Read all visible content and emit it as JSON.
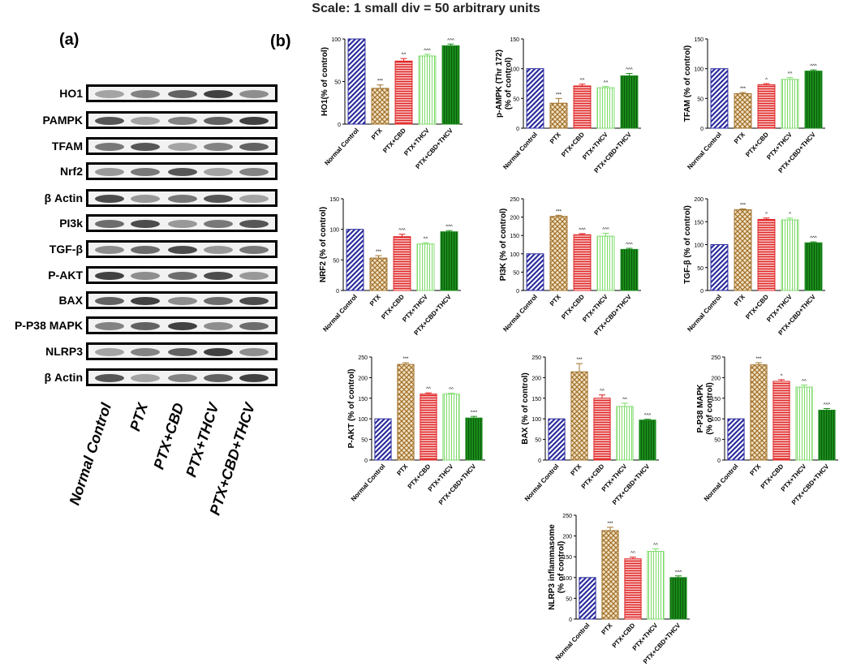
{
  "scale_note": "Scale: 1 small div = 50 arbitrary units",
  "panel_a_label": "(a)",
  "panel_b_label": "(b)",
  "blot": {
    "proteins": [
      "HO1",
      "PAMPK",
      "TFAM",
      "Nrf2",
      "β Actin",
      "PI3k",
      "TGF-β",
      "P-AKT",
      "BAX",
      "P-P38 MAPK",
      "NLRP3",
      "β Actin"
    ],
    "lanes": [
      "Normal Control",
      "PTX",
      "PTX+CBD",
      "PTX+THCV",
      "PTX+CBD+THCV"
    ]
  },
  "colors": {
    "Normal Control": "#2b2b9e",
    "PTX": "#a0702a",
    "PTX+CBD": "#e02020",
    "PTX+THCV": "#7ddb6a",
    "PTX+CBD+THCV": "#1a8a1a"
  },
  "chart_data": [
    {
      "type": "bar",
      "ylabel": "HO1(% of control)",
      "ylim": [
        0,
        100
      ],
      "yticks": [
        0,
        50,
        100
      ],
      "categories": [
        "Normal Control",
        "PTX",
        "PTX+CBD",
        "PTX+THCV",
        "PTX+CBD+THCV"
      ],
      "values": [
        100,
        42,
        74,
        80,
        92
      ],
      "errors": [
        0,
        4,
        3,
        2,
        2
      ],
      "labels": [
        "",
        "***",
        "^^",
        "^^^",
        "^^^"
      ]
    },
    {
      "type": "bar",
      "ylabel": "p-AMPK (Thr 172) (% of control)",
      "ylim": [
        0,
        150
      ],
      "yticks": [
        0,
        50,
        100,
        150
      ],
      "categories": [
        "Normal Control",
        "PTX",
        "PTX+CBD",
        "PTX+THCV",
        "PTX+CBD+THCV"
      ],
      "values": [
        100,
        42,
        71,
        68,
        88
      ],
      "errors": [
        0,
        8,
        3,
        2,
        4
      ],
      "labels": [
        "",
        "***",
        "^^",
        "^^",
        "^^^"
      ]
    },
    {
      "type": "bar",
      "ylabel": "TFAM (% of control)",
      "ylim": [
        0,
        150
      ],
      "yticks": [
        0,
        50,
        100,
        150
      ],
      "categories": [
        "Normal Control",
        "PTX",
        "PTX+CBD",
        "PTX+THCV",
        "PTX+CBD+THCV"
      ],
      "values": [
        100,
        58,
        73,
        82,
        96
      ],
      "errors": [
        0,
        2,
        2,
        3,
        2
      ],
      "labels": [
        "",
        "***",
        "^",
        "^^",
        "^^^"
      ]
    },
    {
      "type": "bar",
      "ylabel": "NRF2 (% of control)",
      "ylim": [
        0,
        150
      ],
      "yticks": [
        0,
        50,
        100,
        150
      ],
      "categories": [
        "Normal Control",
        "PTX",
        "PTX+CBD",
        "PTX+THCV",
        "PTX+CBD+THCV"
      ],
      "values": [
        100,
        53,
        88,
        76,
        96
      ],
      "errors": [
        0,
        4,
        4,
        2,
        2
      ],
      "labels": [
        "",
        "***",
        "^^^",
        "^^",
        "^^^"
      ]
    },
    {
      "type": "bar",
      "ylabel": "PI3K (% of control)",
      "ylim": [
        0,
        250
      ],
      "yticks": [
        0,
        50,
        100,
        150,
        200,
        250
      ],
      "categories": [
        "Normal Control",
        "PTX",
        "PTX+CBD",
        "PTX+THCV",
        "PTX+CBD+THCV"
      ],
      "values": [
        100,
        202,
        152,
        148,
        112
      ],
      "errors": [
        0,
        3,
        3,
        8,
        3
      ],
      "labels": [
        "",
        "***",
        "^^^",
        "^^^",
        "^^^"
      ]
    },
    {
      "type": "bar",
      "ylabel": "TGF-β (% of control)",
      "ylim": [
        0,
        200
      ],
      "yticks": [
        0,
        50,
        100,
        150,
        200
      ],
      "categories": [
        "Normal Control",
        "PTX",
        "PTX+CBD",
        "PTX+THCV",
        "PTX+CBD+THCV"
      ],
      "values": [
        100,
        176,
        155,
        154,
        104
      ],
      "errors": [
        0,
        2,
        3,
        4,
        2
      ],
      "labels": [
        "",
        "***",
        "^",
        "^",
        "^^^"
      ]
    },
    {
      "type": "bar",
      "ylabel": "P-AKT (% of control)",
      "ylim": [
        0,
        250
      ],
      "yticks": [
        0,
        50,
        100,
        150,
        200,
        250
      ],
      "categories": [
        "Normal Control",
        "PTX",
        "PTX+CBD",
        "PTX+THCV",
        "PTX+CBD+THCV"
      ],
      "values": [
        100,
        232,
        160,
        160,
        102
      ],
      "errors": [
        0,
        4,
        3,
        2,
        4
      ],
      "labels": [
        "",
        "***",
        "^^",
        "^^",
        "^^^"
      ]
    },
    {
      "type": "bar",
      "ylabel": "BAX (% of control)",
      "ylim": [
        0,
        250
      ],
      "yticks": [
        0,
        50,
        100,
        150,
        200,
        250
      ],
      "categories": [
        "Normal Control",
        "PTX",
        "PTX+CBD",
        "PTX+THCV",
        "PTX+CBD+THCV"
      ],
      "values": [
        100,
        214,
        150,
        130,
        97
      ],
      "errors": [
        0,
        20,
        8,
        8,
        2
      ],
      "labels": [
        "",
        "***",
        "^^",
        "^^",
        "^^^"
      ]
    },
    {
      "type": "bar",
      "ylabel": "P-P38 MAPK (% of control)",
      "ylim": [
        0,
        250
      ],
      "yticks": [
        0,
        50,
        100,
        150,
        200,
        250
      ],
      "categories": [
        "Normal Control",
        "PTX",
        "PTX+CBD",
        "PTX+THCV",
        "PTX+CBD+THCV"
      ],
      "values": [
        100,
        231,
        191,
        177,
        121
      ],
      "errors": [
        0,
        5,
        4,
        5,
        4
      ],
      "labels": [
        "",
        "***",
        "^",
        "^^",
        "^^^"
      ]
    },
    {
      "type": "bar",
      "ylabel": "NLRP3 inflammasome (% of control)",
      "ylim": [
        0,
        250
      ],
      "yticks": [
        0,
        50,
        100,
        150,
        200,
        250
      ],
      "categories": [
        "Normal Control",
        "PTX",
        "PTX+CBD",
        "PTX+THCV",
        "PTX+CBD+THCV"
      ],
      "values": [
        100,
        213,
        145,
        163,
        100
      ],
      "errors": [
        0,
        8,
        4,
        6,
        4
      ],
      "labels": [
        "",
        "***",
        "^^",
        "^^",
        "^^^"
      ]
    }
  ]
}
